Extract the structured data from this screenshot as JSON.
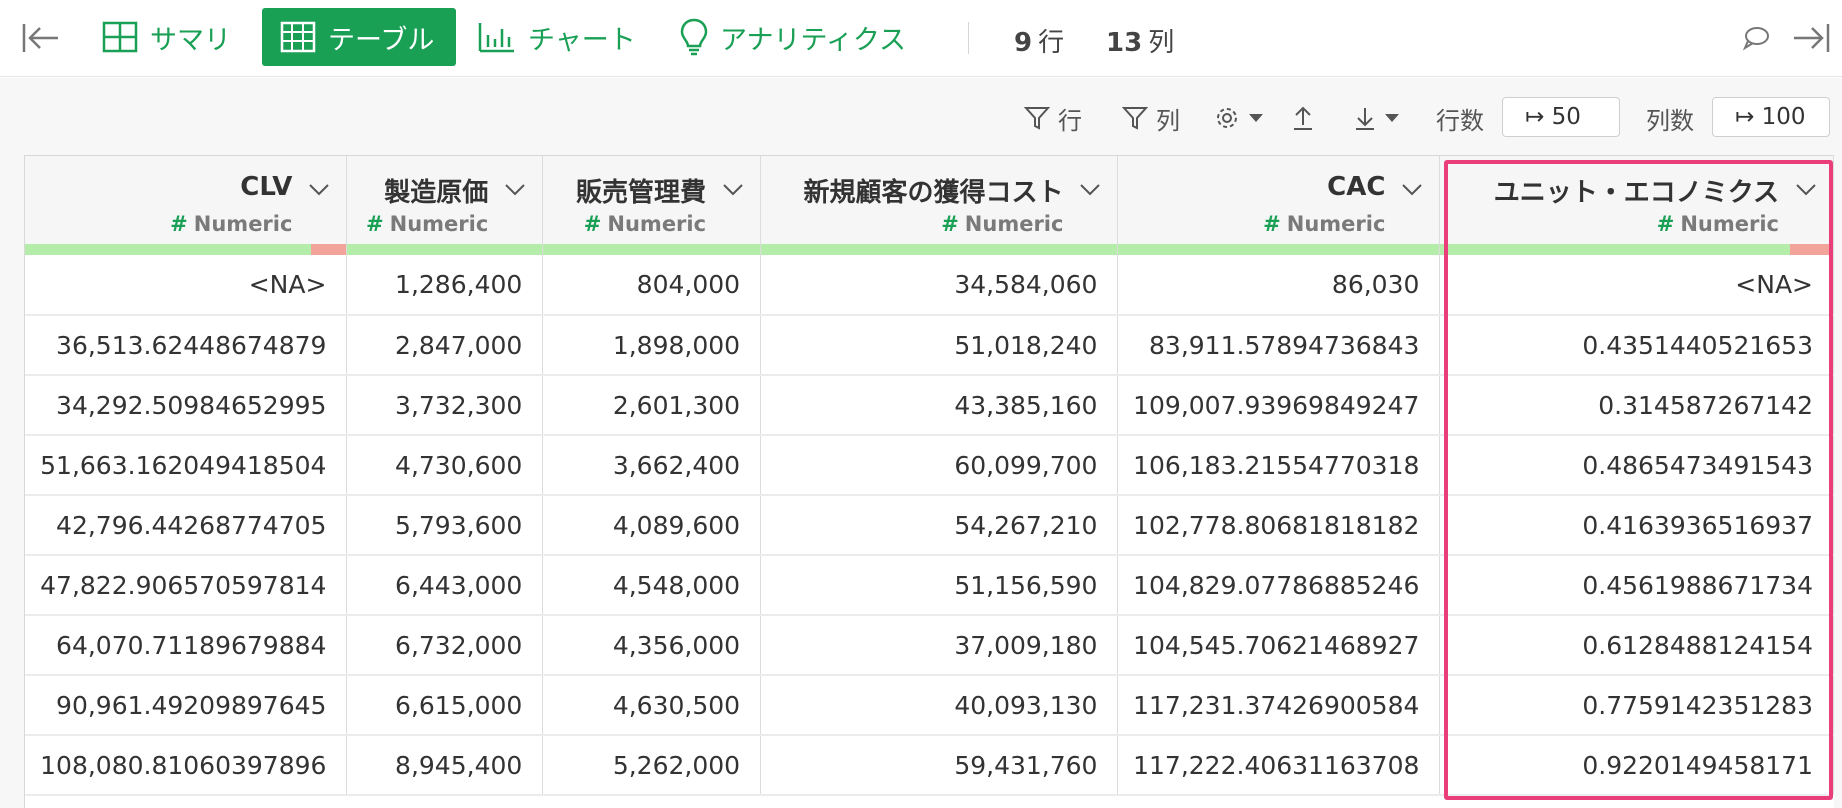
{
  "topbar": {
    "tabs": [
      {
        "label": "サマリ",
        "icon": "grid-icon"
      },
      {
        "label": "テーブル",
        "icon": "table-icon",
        "active": true
      },
      {
        "label": "チャート",
        "icon": "bar-chart-icon"
      },
      {
        "label": "アナリティクス",
        "icon": "lightbulb-icon"
      }
    ],
    "rows_count": "9",
    "rows_unit": "行",
    "cols_count": "13",
    "cols_unit": "列"
  },
  "toolbar": {
    "row_filter": "行",
    "col_filter": "列",
    "rows_label": "行数",
    "rows_value": "↦ 50",
    "cols_label": "列数",
    "cols_value": "↦ 100"
  },
  "colors": {
    "accent": "#1aa055",
    "highlight": "#ea3e7a",
    "valid_bar": "#b4ecaa",
    "missing_bar": "#f2a49a"
  },
  "table": {
    "columns": [
      {
        "name": "CLV",
        "type": "Numeric",
        "missing_fraction": 0.11
      },
      {
        "name": "製造原価",
        "type": "Numeric",
        "missing_fraction": 0
      },
      {
        "name": "販売管理費",
        "type": "Numeric",
        "missing_fraction": 0
      },
      {
        "name": "新規顧客の獲得コスト",
        "type": "Numeric",
        "missing_fraction": 0
      },
      {
        "name": "CAC",
        "type": "Numeric",
        "missing_fraction": 0
      },
      {
        "name": "ユニット・エコノミクス",
        "type": "Numeric",
        "missing_fraction": 0.11
      }
    ],
    "rows": [
      [
        "<NA>",
        "1,286,400",
        "804,000",
        "34,584,060",
        "86,030",
        "<NA>"
      ],
      [
        "36,513.62448674879",
        "2,847,000",
        "1,898,000",
        "51,018,240",
        "83,911.57894736843",
        "0.4351440521653"
      ],
      [
        "34,292.50984652995",
        "3,732,300",
        "2,601,300",
        "43,385,160",
        "109,007.93969849247",
        "0.314587267142"
      ],
      [
        "51,663.162049418504",
        "4,730,600",
        "3,662,400",
        "60,099,700",
        "106,183.21554770318",
        "0.4865473491543"
      ],
      [
        "42,796.44268774705",
        "5,793,600",
        "4,089,600",
        "54,267,210",
        "102,778.80681818182",
        "0.4163936516937"
      ],
      [
        "47,822.906570597814",
        "6,443,000",
        "4,548,000",
        "51,156,590",
        "104,829.07786885246",
        "0.4561988671734"
      ],
      [
        "64,070.71189679884",
        "6,732,000",
        "4,356,000",
        "37,009,180",
        "104,545.70621468927",
        "0.6128488124154"
      ],
      [
        "90,961.49209897645",
        "6,615,000",
        "4,630,500",
        "40,093,130",
        "117,231.37426900584",
        "0.7759142351283"
      ],
      [
        "108,080.81060397896",
        "8,945,400",
        "5,262,000",
        "59,431,760",
        "117,222.40631163708",
        "0.9220149458171"
      ]
    ]
  }
}
